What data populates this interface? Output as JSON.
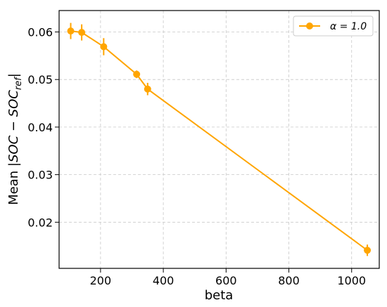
{
  "chart_data": {
    "type": "line",
    "title": "",
    "xlabel": "beta",
    "ylabel_prefix": "Mean ",
    "ylabel_math": "|SOC − SOC",
    "ylabel_sub": "ref",
    "ylabel_suffix": "|",
    "xlim": [
      68,
      1088
    ],
    "ylim": [
      0.0103,
      0.0645
    ],
    "x_ticks": [
      200,
      400,
      600,
      800,
      1000
    ],
    "x_tick_labels": [
      "200",
      "400",
      "600",
      "800",
      "1000"
    ],
    "y_ticks": [
      0.02,
      0.03,
      0.04,
      0.05,
      0.06
    ],
    "y_tick_labels": [
      "0.02",
      "0.03",
      "0.04",
      "0.05",
      "0.06"
    ],
    "grid": true,
    "legend_position": "top-right",
    "series": [
      {
        "name": "α = 1.0",
        "color": "#FFA500",
        "x": [
          105,
          140,
          210,
          315,
          350,
          1050
        ],
        "y": [
          0.0602,
          0.0599,
          0.0569,
          0.0511,
          0.048,
          0.0141
        ],
        "yerr": [
          0.0017,
          0.0017,
          0.0018,
          0.0008,
          0.0013,
          0.0012
        ]
      }
    ]
  }
}
